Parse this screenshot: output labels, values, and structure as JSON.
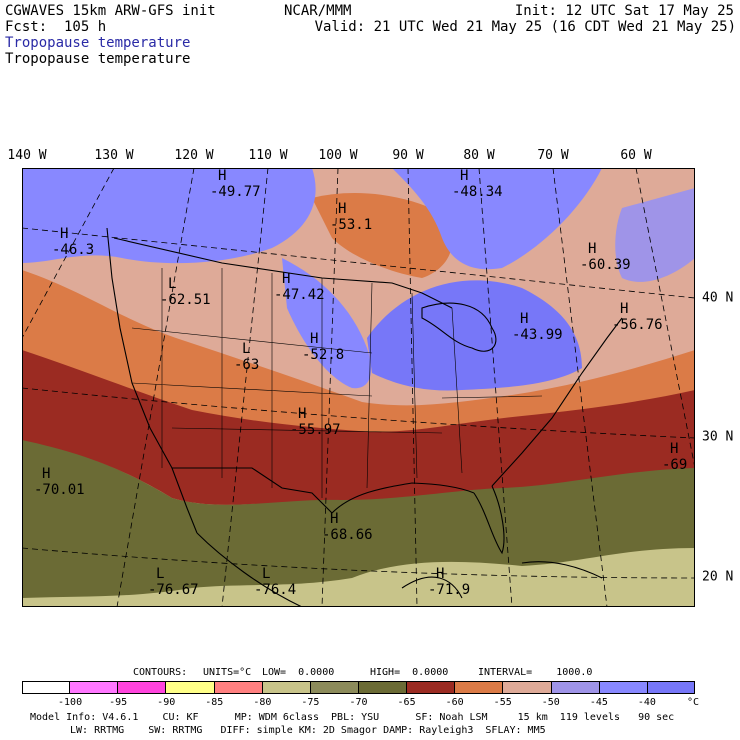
{
  "header": {
    "model_line": "CGWAVES 15km ARW-GFS init",
    "fcst_line": "Fcst:  105 h",
    "producer": "NCAR/MMM",
    "init_line": "Init: 12 UTC Sat 17 May 25",
    "valid_line": "Valid: 21 UTC Wed 21 May 25 (16 CDT Wed 21 May 25)",
    "field_label_1": "Tropopause temperature",
    "field_label_2": "Tropopause temperature"
  },
  "map": {
    "longitude_labels": [
      "140 W",
      "130 W",
      "120 W",
      "110 W",
      "100 W",
      "90 W",
      "80 W",
      "70 W",
      "60 W"
    ],
    "latitude_labels": [
      "40 N",
      "30 N",
      "20 N"
    ],
    "extrema": [
      {
        "type": "H",
        "value": "-49.77"
      },
      {
        "type": "H",
        "value": "-48.34"
      },
      {
        "type": "H",
        "value": "-46.3"
      },
      {
        "type": "H",
        "value": "-53.1"
      },
      {
        "type": "H",
        "value": "-60.39"
      },
      {
        "type": "L",
        "value": "-62.51"
      },
      {
        "type": "H",
        "value": "-47.42"
      },
      {
        "type": "H",
        "value": "-56.76"
      },
      {
        "type": "L",
        "value": "-63"
      },
      {
        "type": "H",
        "value": "-52.8"
      },
      {
        "type": "H",
        "value": "-43.99"
      },
      {
        "type": "H",
        "value": "-55.97"
      },
      {
        "type": "H",
        "value": "-69"
      },
      {
        "type": "H",
        "value": "-70.01"
      },
      {
        "type": "H",
        "value": "-68.66"
      },
      {
        "type": "L",
        "value": "-76.67"
      },
      {
        "type": "L",
        "value": "-76.4"
      },
      {
        "type": "H",
        "value": "-71.9"
      }
    ]
  },
  "contour_info": {
    "contours": "CONTOURS:",
    "units": "UNITS=°C",
    "low": "LOW=  0.0000",
    "high": "HIGH=  0.0000",
    "interval": "INTERVAL=    1000.0"
  },
  "colorbar": {
    "colors": [
      "#ffffff",
      "#ff77ff",
      "#ff44dd",
      "#ffff88",
      "#ff8080",
      "#c8c48a",
      "#8c8b5b",
      "#6b6b35",
      "#9b2b22",
      "#db7b47",
      "#deaa98",
      "#9f94e8",
      "#8888ff",
      "#7777f8"
    ],
    "labels": [
      "-100",
      "-95",
      "-90",
      "-85",
      "-80",
      "-75",
      "-70",
      "-65",
      "-60",
      "-55",
      "-50",
      "-45",
      "-40",
      "°C"
    ]
  },
  "footer": {
    "line1": "Model Info: V4.6.1    CU: KF      MP: WDM 6class  PBL: YSU      SF: Noah LSM     15 km  119 levels   90 sec",
    "line2": "LW: RRTMG    SW: RRTMG   DIFF: simple KM: 2D Smagor DAMP: Rayleigh3  SFLAY: MM5"
  }
}
